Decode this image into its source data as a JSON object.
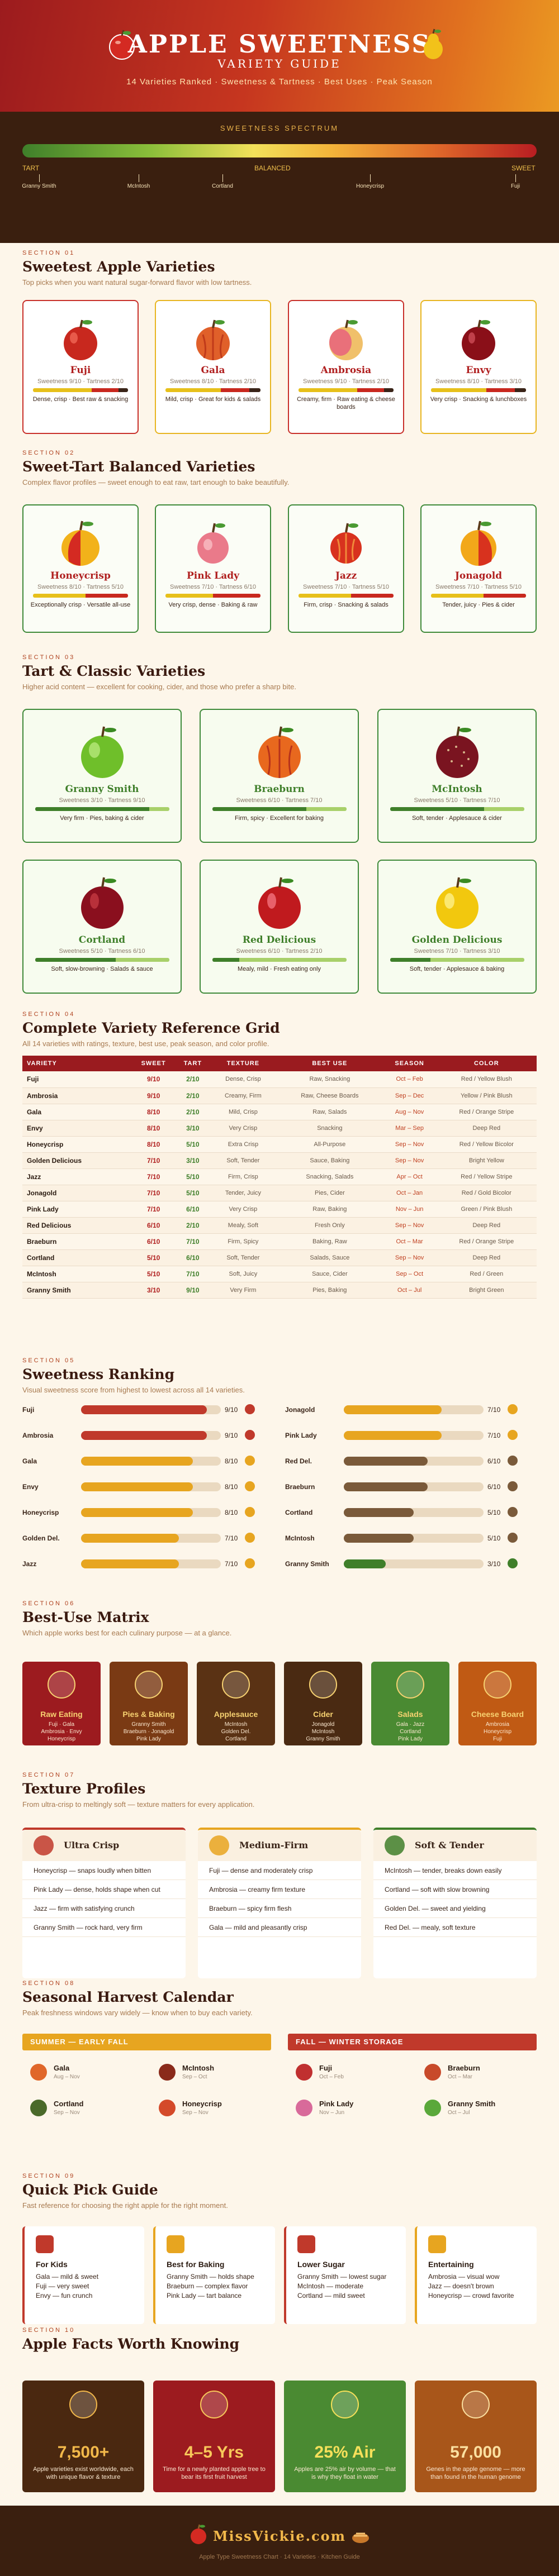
{
  "header": {
    "title": "APPLE SWEETNESS",
    "subtitle": "VARIETY GUIDE",
    "tagline": "14 Varieties Ranked · Sweetness & Tartness · Best Uses · Peak Season"
  },
  "spectrum": {
    "title": "SWEETNESS SPECTRUM",
    "left": "TART",
    "mid": "BALANCED",
    "right": "SWEET",
    "ticks": [
      "Granny Smith",
      "McIntosh",
      "Cortland",
      "Honeycrisp",
      "Fuji"
    ]
  },
  "s1": {
    "num": "SECTION 01",
    "title": "Sweetest Apple Varieties",
    "sub": "Top picks when you want natural sugar-forward flavor with low tartness.",
    "cards": [
      {
        "name": "Fuji",
        "score": "Sweetness 9/10 · Tartness 2/10",
        "desc": "Dense, crisp · Best raw & snacking",
        "sweet": 9
      },
      {
        "name": "Gala",
        "score": "Sweetness 8/10 · Tartness 2/10",
        "desc": "Mild, crisp · Great for kids & salads",
        "sweet": 8
      },
      {
        "name": "Ambrosia",
        "score": "Sweetness 9/10 · Tartness 2/10",
        "desc": "Creamy, firm · Raw eating & cheese boards",
        "sweet": 9
      },
      {
        "name": "Envy",
        "score": "Sweetness 8/10 · Tartness 3/10",
        "desc": "Very crisp · Snacking & lunchboxes",
        "sweet": 8
      }
    ]
  },
  "s2": {
    "num": "SECTION 02",
    "title": "Sweet-Tart Balanced Varieties",
    "sub": "Complex flavor profiles — sweet enough to eat raw, tart enough to bake beautifully.",
    "cards": [
      {
        "name": "Honeycrisp",
        "score": "Sweetness 8/10 · Tartness 5/10",
        "desc": "Exceptionally crisp · Versatile all-use",
        "sweet": 8
      },
      {
        "name": "Pink Lady",
        "score": "Sweetness 7/10 · Tartness 6/10",
        "desc": "Very crisp, dense · Baking & raw",
        "sweet": 7
      },
      {
        "name": "Jazz",
        "score": "Sweetness 7/10 · Tartness 5/10",
        "desc": "Firm, crisp · Snacking & salads",
        "sweet": 7
      },
      {
        "name": "Jonagold",
        "score": "Sweetness 7/10 · Tartness 5/10",
        "desc": "Tender, juicy · Pies & cider",
        "sweet": 7
      }
    ]
  },
  "s3": {
    "num": "SECTION 03",
    "title": "Tart & Classic Varieties",
    "sub": "Higher acid content — excellent for cooking, cider, and those who prefer a sharp bite.",
    "cards": [
      {
        "name": "Granny Smith",
        "score": "Sweetness 3/10 · Tartness 9/10",
        "desc": "Very firm · Pies, baking & cider"
      },
      {
        "name": "Braeburn",
        "score": "Sweetness 6/10 · Tartness 7/10",
        "desc": "Firm, spicy · Excellent for baking"
      },
      {
        "name": "McIntosh",
        "score": "Sweetness 5/10 · Tartness 7/10",
        "desc": "Soft, tender · Applesauce & cider"
      },
      {
        "name": "Cortland",
        "score": "Sweetness 5/10 · Tartness 6/10",
        "desc": "Soft, slow-browning · Salads & sauce"
      },
      {
        "name": "Red Delicious",
        "score": "Sweetness 6/10 · Tartness 2/10",
        "desc": "Mealy, mild · Fresh eating only"
      },
      {
        "name": "Golden Delicious",
        "score": "Sweetness 7/10 · Tartness 3/10",
        "desc": "Soft, tender · Applesauce & baking"
      }
    ]
  },
  "s4": {
    "num": "SECTION 04",
    "title": "Complete Variety Reference Grid",
    "sub": "All 14 varieties with ratings, texture, best use, peak season, and color profile.",
    "headers": [
      "VARIETY",
      "SWEET",
      "TART",
      "TEXTURE",
      "BEST USE",
      "SEASON",
      "COLOR"
    ],
    "rows": [
      [
        "Fuji",
        "9/10",
        "2/10",
        "Dense, Crisp",
        "Raw, Snacking",
        "Oct – Feb",
        "Red / Yellow Blush"
      ],
      [
        "Ambrosia",
        "9/10",
        "2/10",
        "Creamy, Firm",
        "Raw, Cheese Boards",
        "Sep – Dec",
        "Yellow / Pink Blush"
      ],
      [
        "Gala",
        "8/10",
        "2/10",
        "Mild, Crisp",
        "Raw, Salads",
        "Aug – Nov",
        "Red / Orange Stripe"
      ],
      [
        "Envy",
        "8/10",
        "3/10",
        "Very Crisp",
        "Snacking",
        "Mar – Sep",
        "Deep Red"
      ],
      [
        "Honeycrisp",
        "8/10",
        "5/10",
        "Extra Crisp",
        "All-Purpose",
        "Sep – Nov",
        "Red / Yellow Bicolor"
      ],
      [
        "Golden Delicious",
        "7/10",
        "3/10",
        "Soft, Tender",
        "Sauce, Baking",
        "Sep – Nov",
        "Bright Yellow"
      ],
      [
        "Jazz",
        "7/10",
        "5/10",
        "Firm, Crisp",
        "Snacking, Salads",
        "Apr – Oct",
        "Red / Yellow Stripe"
      ],
      [
        "Jonagold",
        "7/10",
        "5/10",
        "Tender, Juicy",
        "Pies, Cider",
        "Oct – Jan",
        "Red / Gold Bicolor"
      ],
      [
        "Pink Lady",
        "7/10",
        "6/10",
        "Very Crisp",
        "Raw, Baking",
        "Nov – Jun",
        "Green / Pink Blush"
      ],
      [
        "Red Delicious",
        "6/10",
        "2/10",
        "Mealy, Soft",
        "Fresh Only",
        "Sep – Nov",
        "Deep Red"
      ],
      [
        "Braeburn",
        "6/10",
        "7/10",
        "Firm, Spicy",
        "Baking, Raw",
        "Oct – Mar",
        "Red / Orange Stripe"
      ],
      [
        "Cortland",
        "5/10",
        "6/10",
        "Soft, Tender",
        "Salads, Sauce",
        "Sep – Nov",
        "Deep Red"
      ],
      [
        "McIntosh",
        "5/10",
        "7/10",
        "Soft, Juicy",
        "Sauce, Cider",
        "Sep – Oct",
        "Red / Green"
      ],
      [
        "Granny Smith",
        "3/10",
        "9/10",
        "Very Firm",
        "Pies, Baking",
        "Oct – Jul",
        "Bright Green"
      ]
    ]
  },
  "s5": {
    "num": "SECTION 05",
    "title": "Sweetness Ranking",
    "sub": "Visual sweetness score from highest to lowest across all 14 varieties.",
    "left": [
      {
        "n": "Fuji",
        "v": 9,
        "t": "9/10",
        "c": "#c0392b"
      },
      {
        "n": "Ambrosia",
        "v": 9,
        "t": "9/10",
        "c": "#c0392b"
      },
      {
        "n": "Gala",
        "v": 8,
        "t": "8/10",
        "c": "#e7a520"
      },
      {
        "n": "Envy",
        "v": 8,
        "t": "8/10",
        "c": "#e7a520"
      },
      {
        "n": "Honeycrisp",
        "v": 8,
        "t": "8/10",
        "c": "#e7a520"
      },
      {
        "n": "Golden Del.",
        "v": 7,
        "t": "7/10",
        "c": "#e7a520"
      },
      {
        "n": "Jazz",
        "v": 7,
        "t": "7/10",
        "c": "#e7a520"
      }
    ],
    "right": [
      {
        "n": "Jonagold",
        "v": 7,
        "t": "7/10",
        "c": "#e7a520"
      },
      {
        "n": "Pink Lady",
        "v": 7,
        "t": "7/10",
        "c": "#e7a520"
      },
      {
        "n": "Red Del.",
        "v": 6,
        "t": "6/10",
        "c": "#7a5a3a"
      },
      {
        "n": "Braeburn",
        "v": 6,
        "t": "6/10",
        "c": "#7a5a3a"
      },
      {
        "n": "Cortland",
        "v": 5,
        "t": "5/10",
        "c": "#7a5a3a"
      },
      {
        "n": "McIntosh",
        "v": 5,
        "t": "5/10",
        "c": "#7a5a3a"
      },
      {
        "n": "Granny Smith",
        "v": 3,
        "t": "3/10",
        "c": "#3f7f2a"
      }
    ]
  },
  "s6": {
    "num": "SECTION 06",
    "title": "Best-Use Matrix",
    "sub": "Which apple works best for each culinary purpose — at a glance.",
    "items": [
      {
        "t": "Raw Eating",
        "a": [
          "Fuji · Gala",
          "Ambrosia · Envy",
          "Honeycrisp"
        ],
        "bg": "#9c1b1f"
      },
      {
        "t": "Pies & Baking",
        "a": [
          "Granny Smith",
          "Braeburn · Jonagold",
          "Pink Lady"
        ],
        "bg": "#7a3a14"
      },
      {
        "t": "Applesauce",
        "a": [
          "McIntosh",
          "Golden Del.",
          "Cortland"
        ],
        "bg": "#5a3214"
      },
      {
        "t": "Cider",
        "a": [
          "Jonagold",
          "McIntosh",
          "Granny Smith"
        ],
        "bg": "#4a2a12"
      },
      {
        "t": "Salads",
        "a": [
          "Gala · Jazz",
          "Cortland",
          "Pink Lady"
        ],
        "bg": "#4a8a32"
      },
      {
        "t": "Cheese Board",
        "a": [
          "Ambrosia",
          "Honeycrisp",
          "Fuji"
        ],
        "bg": "#c05a14"
      }
    ]
  },
  "s7": {
    "num": "SECTION 07",
    "title": "Texture Profiles",
    "sub": "From ultra-crisp to meltingly soft — texture matters for every application.",
    "cols": [
      {
        "t": "Ultra Crisp",
        "items": [
          "Honeycrisp — snaps loudly when bitten",
          "Pink Lady — dense, holds shape when cut",
          "Jazz — firm with satisfying crunch",
          "Granny Smith — rock hard, very firm"
        ],
        "c": "#c0392b"
      },
      {
        "t": "Medium-Firm",
        "items": [
          "Fuji — dense and moderately crisp",
          "Ambrosia — creamy firm texture",
          "Braeburn — spicy firm flesh",
          "Gala — mild and pleasantly crisp"
        ],
        "c": "#e7a520"
      },
      {
        "t": "Soft & Tender",
        "items": [
          "McIntosh — tender, breaks down easily",
          "Cortland — soft with slow browning",
          "Golden Del. — sweet and yielding",
          "Red Del. — mealy, soft texture"
        ],
        "c": "#3f7f2a"
      }
    ]
  },
  "s8": {
    "num": "SECTION 08",
    "title": "Seasonal Harvest Calendar",
    "sub": "Peak freshness windows vary widely — know when to buy each variety.",
    "a": {
      "t": "SUMMER — EARLY FALL",
      "items": [
        {
          "n": "Gala",
          "d": "Aug – Nov",
          "c": "#e0672a"
        },
        {
          "n": "McIntosh",
          "d": "Sep – Oct",
          "c": "#8a2a1a"
        },
        {
          "n": "Cortland",
          "d": "Sep – Nov",
          "c": "#4a6a2a"
        },
        {
          "n": "Honeycrisp",
          "d": "Sep – Nov",
          "c": "#d44a2a"
        }
      ]
    },
    "b": {
      "t": "FALL — WINTER STORAGE",
      "items": [
        {
          "n": "Fuji",
          "d": "Oct – Feb",
          "c": "#c03030"
        },
        {
          "n": "Braeburn",
          "d": "Oct – Mar",
          "c": "#c84a2a"
        },
        {
          "n": "Pink Lady",
          "d": "Nov – Jun",
          "c": "#d86a9a"
        },
        {
          "n": "Granny Smith",
          "d": "Oct – Jul",
          "c": "#5aa83a"
        }
      ]
    }
  },
  "s9": {
    "num": "SECTION 09",
    "title": "Quick Pick Guide",
    "sub": "Fast reference for choosing the right apple for the right moment.",
    "cards": [
      {
        "t": "For Kids",
        "l": [
          "Gala — mild & sweet",
          "Fuji — very sweet",
          "Envy — fun crunch"
        ],
        "c": "#c0392b"
      },
      {
        "t": "Best for Baking",
        "l": [
          "Granny Smith — holds shape",
          "Braeburn — complex flavor",
          "Pink Lady — tart balance"
        ],
        "c": "#e7a520"
      },
      {
        "t": "Lower Sugar",
        "l": [
          "Granny Smith — lowest sugar",
          "McIntosh — moderate",
          "Cortland — mild sweet"
        ],
        "c": "#c0392b"
      },
      {
        "t": "Entertaining",
        "l": [
          "Ambrosia — visual wow",
          "Jazz — doesn't brown",
          "Honeycrisp — crowd favorite"
        ],
        "c": "#e7a520"
      }
    ]
  },
  "s10": {
    "num": "SECTION 10",
    "title": "Apple Facts Worth Knowing",
    "facts": [
      {
        "v": "7,500+",
        "d": "Apple varieties exist worldwide, each with unique flavor & texture",
        "bg": "#4a2810",
        "fg": "#f2b84a"
      },
      {
        "v": "4–5 Yrs",
        "d": "Time for a newly planted apple tree to bear its first fruit harvest",
        "bg": "#9c1b1f",
        "fg": "#f7c85a"
      },
      {
        "v": "25% Air",
        "d": "Apples are 25% air by volume — that is why they float in water",
        "bg": "#4a8a32",
        "fg": "#f7e05a"
      },
      {
        "v": "57,000",
        "d": "Genes in the apple genome — more than found in the human genome",
        "bg": "#a8561a",
        "fg": "#fbe0a0"
      }
    ]
  },
  "footer": {
    "brand": "MissVickie.com",
    "line": "Apple Type Sweetness Chart · 14 Varieties · Kitchen Guide"
  }
}
